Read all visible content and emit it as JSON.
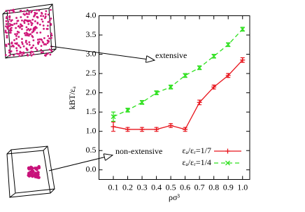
{
  "chart_data": {
    "type": "line",
    "xlabel": "ρσ³",
    "ylabel": "kBT/εₐ",
    "xlim": [
      0,
      1.05
    ],
    "xticks": [
      0.1,
      0.2,
      0.3,
      0.4,
      0.5,
      0.6,
      0.7,
      0.8,
      0.9,
      {
        "value": 1,
        "label": "1.0"
      }
    ],
    "ylim": [
      -0.25,
      4
    ],
    "yticks": [
      {
        "value": 0,
        "label": "0.0"
      },
      0.5,
      {
        "value": 1,
        "label": "1.0"
      },
      1.5,
      {
        "value": 2,
        "label": "2.0"
      },
      2.5,
      {
        "value": 3,
        "label": "3.0"
      },
      3.5,
      {
        "value": 4,
        "label": "4.0"
      }
    ],
    "grid": false,
    "legend": "lower right",
    "x": [
      0.1,
      0.2,
      0.3,
      0.4,
      0.5,
      0.6,
      0.7,
      0.8,
      0.9,
      1
    ],
    "series": [
      {
        "name": "εₐ/εᵣ=1/7",
        "color": "#e8141c",
        "dash": "solid",
        "marker": "plus",
        "values": [
          1.12,
          1.05,
          1.05,
          1.05,
          1.15,
          1.05,
          1.75,
          2.15,
          2.45,
          2.85
        ],
        "errors": [
          0.12,
          0.05,
          0.05,
          0.05,
          0.05,
          0.05,
          0.06,
          0.05,
          0.05,
          0.06
        ]
      },
      {
        "name": "εₐ/εᵣ=1/4",
        "color": "#2ee01e",
        "dash": "dashed",
        "marker": "x",
        "values": [
          1.38,
          1.55,
          1.75,
          2.0,
          2.15,
          2.45,
          2.65,
          2.95,
          3.25,
          3.65
        ],
        "errors": [
          0.12,
          0.05,
          0.05,
          0.05,
          0.05,
          0.05,
          0.05,
          0.05,
          0.05,
          0.05
        ]
      }
    ],
    "annotations": [
      "extensive",
      "non-extensive"
    ]
  }
}
